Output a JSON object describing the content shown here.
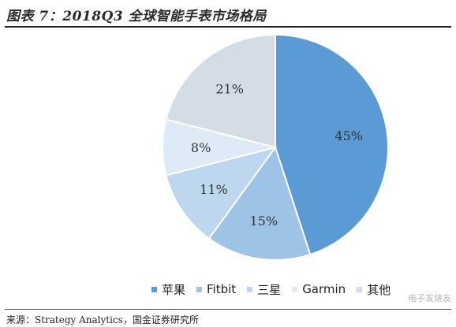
{
  "figure": {
    "title": "图表 7：2018Q3 全球智能手表市场格局",
    "source": "来源：Strategy Analytics，国金证券研究所"
  },
  "chart_data": {
    "type": "pie",
    "title": "2018Q3 全球智能手表市场格局",
    "slices": [
      {
        "name": "苹果",
        "value": 45,
        "label": "45%",
        "color": "#5b9bd5"
      },
      {
        "name": "Fitbit",
        "value": 15,
        "label": "15%",
        "color": "#9dc3e6"
      },
      {
        "name": "三星",
        "value": 11,
        "label": "11%",
        "color": "#bdd7ee"
      },
      {
        "name": "Garmin",
        "value": 8,
        "label": "8%",
        "color": "#deebf7"
      },
      {
        "name": "其他",
        "value": 21,
        "label": "21%",
        "color": "#d6dce5"
      }
    ],
    "legend_position": "bottom",
    "start_angle": "12 o'clock",
    "direction": "clockwise"
  },
  "watermark": "电子发烧友"
}
